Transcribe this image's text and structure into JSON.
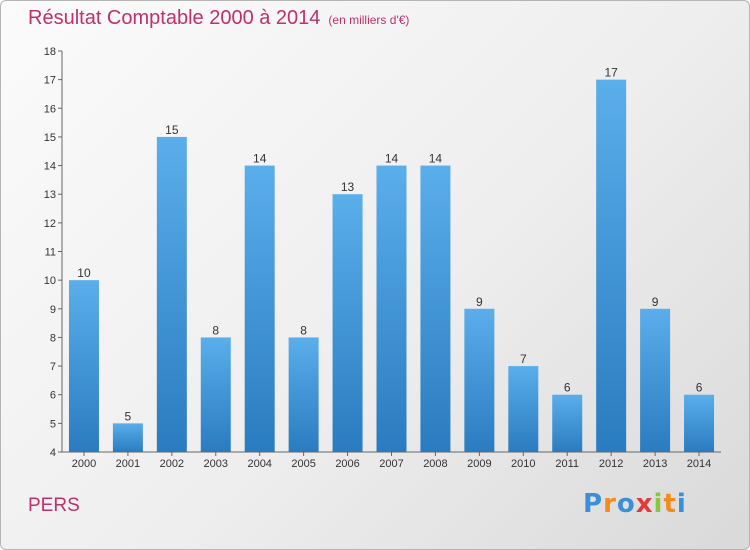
{
  "chart_data": {
    "type": "bar",
    "title": "Résultat Comptable 2000 à 2014",
    "subtitle": "(en milliers d'€)",
    "categories": [
      "2000",
      "2001",
      "2002",
      "2003",
      "2004",
      "2005",
      "2006",
      "2007",
      "2008",
      "2009",
      "2010",
      "2011",
      "2012",
      "2013",
      "2014"
    ],
    "values": [
      10,
      5,
      15,
      8,
      14,
      8,
      13,
      14,
      14,
      9,
      7,
      6,
      17,
      9,
      6
    ],
    "ylim": [
      4,
      18
    ],
    "yticks": [
      4,
      5,
      6,
      7,
      8,
      9,
      10,
      11,
      12,
      13,
      14,
      15,
      16,
      17,
      18
    ],
    "xlabel": "",
    "ylabel": "",
    "grid": false,
    "bar_color": "#4a9ee0"
  },
  "footer": {
    "city": "PERS",
    "logo_letters": [
      "P",
      "r",
      "o",
      "x",
      "i",
      "t",
      "i"
    ],
    "logo_colors": [
      "#3a8fd6",
      "#f28c1c",
      "#3a8fd6",
      "#e23a3a",
      "#8cc63f",
      "#f28c1c",
      "#3a8fd6"
    ]
  }
}
